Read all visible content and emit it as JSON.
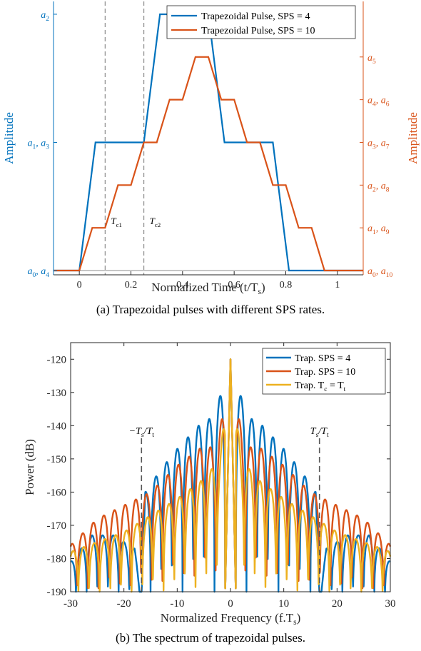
{
  "chart_data": [
    {
      "type": "line",
      "caption": "(a) Trapezoidal pulses with different SPS rates.",
      "xlabel": "Normalized Time (t/T",
      "xlabel_sub": "s",
      "xlabel_end": ")",
      "ylabel_left": "Amplitude",
      "ylabel_right": "Amplitude",
      "xlim": [
        -0.1,
        1.1
      ],
      "ylim": [
        -0.1,
        6.3
      ],
      "xticks": [
        0,
        0.2,
        0.4,
        0.6,
        0.8,
        1
      ],
      "xtick_labels": [
        "0",
        "0.2",
        "0.4",
        "0.6",
        "0.8",
        "1"
      ],
      "left_ticks": [
        {
          "y": 0,
          "main": "a",
          "sub": "0",
          "main2": ", a",
          "sub2": "4"
        },
        {
          "y": 3,
          "main": "a",
          "sub": "1",
          "main2": ", a",
          "sub2": "3"
        },
        {
          "y": 6,
          "main": "a",
          "sub": "2",
          "main2": "",
          "sub2": ""
        }
      ],
      "right_ticks": [
        {
          "y": 0,
          "main": "a",
          "sub": "0",
          "main2": ", a",
          "sub2": "10"
        },
        {
          "y": 1,
          "main": "a",
          "sub": "1",
          "main2": ", a",
          "sub2": "9"
        },
        {
          "y": 2,
          "main": "a",
          "sub": "2",
          "main2": ", a",
          "sub2": "8"
        },
        {
          "y": 3,
          "main": "a",
          "sub": "3",
          "main2": ", a",
          "sub2": "7"
        },
        {
          "y": 4,
          "main": "a",
          "sub": "4",
          "main2": ", a",
          "sub2": "6"
        },
        {
          "y": 5,
          "main": "a",
          "sub": "5",
          "main2": "",
          "sub2": ""
        }
      ],
      "vlines": [
        {
          "x": 0.1,
          "label": "T",
          "sub": "c1"
        },
        {
          "x": 0.25,
          "label": "T",
          "sub": "c2"
        }
      ],
      "series": [
        {
          "name": "Trapezoidal Pulse, SPS = 4",
          "color": "#0072BD",
          "x": [
            -0.1,
            0,
            0.0625,
            0.25,
            0.3125,
            0.5,
            0.5625,
            0.75,
            0.8125,
            1.1
          ],
          "y": [
            0,
            0,
            3,
            3,
            6,
            6,
            3,
            3,
            0,
            0
          ]
        },
        {
          "name": "Trapezoidal Pulse, SPS = 10",
          "color": "#D95319",
          "x": [
            -0.1,
            0,
            0.05,
            0.1,
            0.15,
            0.2,
            0.25,
            0.3,
            0.35,
            0.4,
            0.45,
            0.5,
            0.55,
            0.6,
            0.65,
            0.7,
            0.75,
            0.8,
            0.85,
            0.9,
            0.95,
            1.1
          ],
          "y": [
            0,
            0,
            1,
            1,
            2,
            2,
            3,
            3,
            4,
            4,
            5,
            5,
            4,
            4,
            3,
            3,
            2,
            2,
            1,
            1,
            0,
            0
          ]
        }
      ],
      "legend_position": "top-right"
    },
    {
      "type": "line",
      "caption": "(b) The spectrum of trapezoidal pulses.",
      "xlabel": "Normalized Frequency (f.T",
      "xlabel_sub": "s",
      "xlabel_end": ")",
      "ylabel": "Power (dB)",
      "xlim": [
        -30,
        30
      ],
      "ylim": [
        -190,
        -115
      ],
      "xticks": [
        -30,
        -20,
        -10,
        0,
        10,
        20,
        30
      ],
      "xtick_labels": [
        "-30",
        "-20",
        "-10",
        "0",
        "10",
        "20",
        "30"
      ],
      "yticks": [
        -190,
        -180,
        -170,
        -160,
        -150,
        -140,
        -130,
        -120
      ],
      "ytick_labels": [
        "-190",
        "-180",
        "-170",
        "-160",
        "-150",
        "-140",
        "-130",
        "-120"
      ],
      "vlines": [
        {
          "x": -16.7,
          "label": "−T",
          "sub": "s",
          "label2": "/T",
          "sub2": "t"
        },
        {
          "x": 16.7,
          "label": "T",
          "sub": "s",
          "label2": "/T",
          "sub2": "t"
        }
      ],
      "series": [
        {
          "name": "Trap. SPS = 4",
          "color": "#0072BD",
          "envelope": [
            [
              0,
              -120
            ],
            [
              3,
              -137
            ],
            [
              6,
              -140
            ],
            [
              10,
              -147
            ],
            [
              13,
              -153
            ],
            [
              16,
              -160
            ],
            [
              16.7,
              -190
            ],
            [
              18,
              -177
            ],
            [
              22,
              -173
            ],
            [
              26,
              -173
            ],
            [
              30,
              -181
            ]
          ],
          "period": 2.0
        },
        {
          "name": "Trap. SPS = 10",
          "color": "#D95319",
          "envelope": [
            [
              0,
              -120
            ],
            [
              2.5,
              -147
            ],
            [
              5,
              -146
            ],
            [
              10,
              -152
            ],
            [
              15,
              -160
            ],
            [
              20,
              -164
            ],
            [
              25,
              -168
            ],
            [
              30,
              -176
            ]
          ],
          "period": 2.0
        },
        {
          "name": "Trap. T",
          "name_sub": "c",
          "name_end": " = T",
          "name_sub2": "t",
          "color": "#EDB120",
          "envelope": [
            [
              0,
              -120
            ],
            [
              2,
              -150
            ],
            [
              5,
              -156
            ],
            [
              10,
              -162
            ],
            [
              15,
              -167
            ],
            [
              20,
              -172
            ],
            [
              25,
              -175
            ],
            [
              30,
              -178
            ]
          ],
          "period": 2.0
        }
      ],
      "legend_position": "top-right"
    }
  ]
}
